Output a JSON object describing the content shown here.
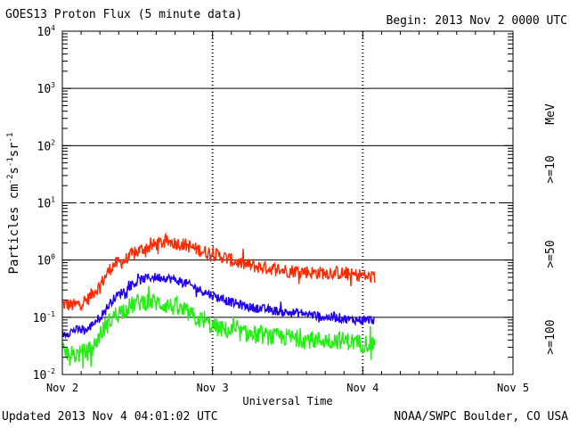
{
  "header": {
    "title": "GOES13 Proton Flux (5 minute data)",
    "begin": "Begin: 2013 Nov 2 0000 UTC"
  },
  "footer": {
    "updated": "Updated 2013 Nov  4 04:01:02 UTC",
    "credit": "NOAA/SWPC Boulder, CO USA"
  },
  "chart_data": {
    "type": "line",
    "title": "GOES13 Proton Flux (5 minute data)",
    "xlabel": "Universal Time",
    "ylabel_main": "Particles cm",
    "ylabel_exp1": "-2",
    "ylabel_mid1": "s",
    "ylabel_exp2": "-1",
    "ylabel_mid2": "sr",
    "ylabel_exp3": "-1",
    "yscale": "log",
    "ylim": [
      0.01,
      10000
    ],
    "xlim": [
      0,
      72
    ],
    "x_unit": "hours since 2013 Nov 2 0000 UTC",
    "x_ticks": [
      {
        "x": 0,
        "label": "Nov 2"
      },
      {
        "x": 24,
        "label": "Nov 3"
      },
      {
        "x": 48,
        "label": "Nov 4"
      },
      {
        "x": 72,
        "label": "Nov 5"
      }
    ],
    "y_ticks": [
      {
        "y": 0.01,
        "base": "10",
        "exp": "-2"
      },
      {
        "y": 0.1,
        "base": "10",
        "exp": "-1"
      },
      {
        "y": 1,
        "base": "10",
        "exp": "0"
      },
      {
        "y": 10,
        "base": "10",
        "exp": "1"
      },
      {
        "y": 100,
        "base": "10",
        "exp": "2"
      },
      {
        "y": 1000,
        "base": "10",
        "exp": "3"
      },
      {
        "y": 10000,
        "base": "10",
        "exp": "4"
      }
    ],
    "dashed_reference_level": 10,
    "unit_label": "MeV",
    "series": [
      {
        "name": ">=10",
        "color": "#ff2a00",
        "x": [
          0,
          2,
          4,
          5,
          6,
          7,
          8,
          9,
          10,
          11,
          12,
          13,
          14,
          15,
          16,
          17,
          18,
          19,
          20,
          21,
          22,
          23,
          24,
          26,
          28,
          30,
          32,
          34,
          36,
          38,
          40,
          42,
          44,
          46,
          48,
          49,
          50
        ],
        "values": [
          0.17,
          0.16,
          0.2,
          0.28,
          0.35,
          0.55,
          0.8,
          0.9,
          1.0,
          1.2,
          1.4,
          1.6,
          1.7,
          1.9,
          2.0,
          2.1,
          2.0,
          1.9,
          1.8,
          1.6,
          1.5,
          1.35,
          1.3,
          1.1,
          0.9,
          0.8,
          0.75,
          0.7,
          0.65,
          0.65,
          0.6,
          0.6,
          0.6,
          0.55,
          0.55,
          0.5,
          0.5
        ],
        "noise": 0.12
      },
      {
        "name": ">=50",
        "color": "#1e00ee",
        "x": [
          0,
          2,
          4,
          5,
          6,
          7,
          8,
          9,
          10,
          11,
          12,
          13,
          14,
          15,
          16,
          17,
          18,
          19,
          20,
          21,
          22,
          23,
          24,
          26,
          28,
          30,
          32,
          34,
          36,
          38,
          40,
          42,
          44,
          46,
          48,
          49,
          50
        ],
        "values": [
          0.05,
          0.06,
          0.06,
          0.08,
          0.1,
          0.14,
          0.2,
          0.25,
          0.3,
          0.36,
          0.42,
          0.47,
          0.5,
          0.5,
          0.5,
          0.48,
          0.45,
          0.42,
          0.38,
          0.34,
          0.3,
          0.27,
          0.24,
          0.2,
          0.17,
          0.15,
          0.14,
          0.13,
          0.12,
          0.12,
          0.11,
          0.1,
          0.1,
          0.09,
          0.09,
          0.09,
          0.09
        ],
        "noise": 0.08
      },
      {
        "name": ">=100",
        "color": "#22ee11",
        "x": [
          0,
          2,
          4,
          5,
          6,
          7,
          8,
          9,
          10,
          11,
          12,
          13,
          14,
          15,
          16,
          17,
          18,
          19,
          20,
          21,
          22,
          23,
          24,
          26,
          28,
          30,
          32,
          34,
          36,
          38,
          40,
          42,
          44,
          46,
          48,
          49,
          50
        ],
        "values": [
          0.025,
          0.022,
          0.025,
          0.03,
          0.05,
          0.07,
          0.1,
          0.12,
          0.14,
          0.16,
          0.18,
          0.19,
          0.19,
          0.18,
          0.17,
          0.16,
          0.15,
          0.13,
          0.12,
          0.1,
          0.09,
          0.08,
          0.07,
          0.06,
          0.055,
          0.05,
          0.048,
          0.045,
          0.045,
          0.042,
          0.04,
          0.04,
          0.04,
          0.038,
          0.035,
          0.035,
          0.035
        ],
        "noise": 0.16
      }
    ]
  }
}
